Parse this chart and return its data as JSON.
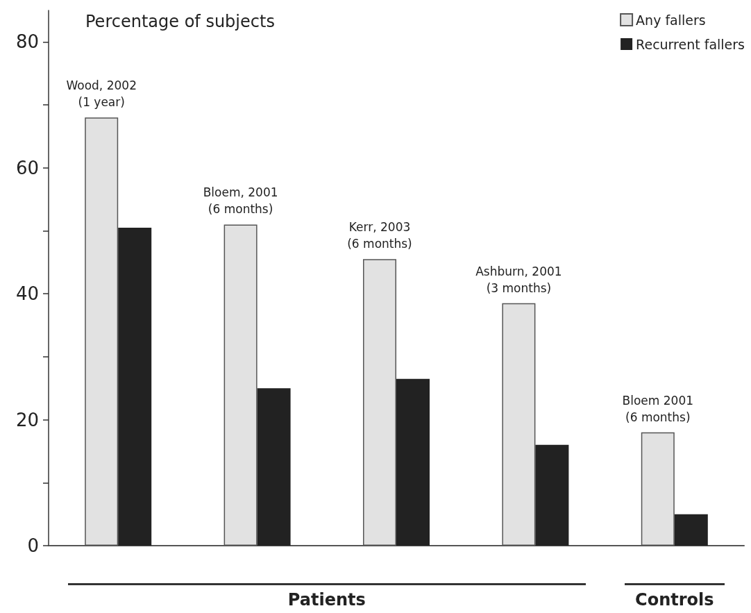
{
  "chart_data": {
    "type": "bar",
    "ylabel": "Percentage of subjects",
    "categories": [
      "Wood, 2002\n(1 year)",
      "Bloem, 2001\n(6 months)",
      "Kerr, 2003\n(6 months)",
      "Ashburn, 2001\n(3 months)",
      "Bloem 2001\n(6 months)"
    ],
    "series": [
      {
        "name": "Any fallers",
        "color": "#e2e2e2",
        "values": [
          68,
          51,
          45.5,
          38.5,
          18
        ]
      },
      {
        "name": "Recurrent fallers",
        "color": "#222222",
        "values": [
          50.5,
          25,
          26.5,
          16,
          5
        ]
      }
    ],
    "ylim": [
      0,
      85
    ],
    "yticks": [
      0,
      {
        "value": 10,
        "label": null
      },
      20,
      {
        "value": 30,
        "label": null
      },
      40,
      {
        "value": 50,
        "label": null
      },
      60,
      {
        "value": 70,
        "label": null
      },
      80
    ],
    "grid": false,
    "legend": "top right",
    "annotations": [
      "Patients",
      "Controls"
    ]
  }
}
